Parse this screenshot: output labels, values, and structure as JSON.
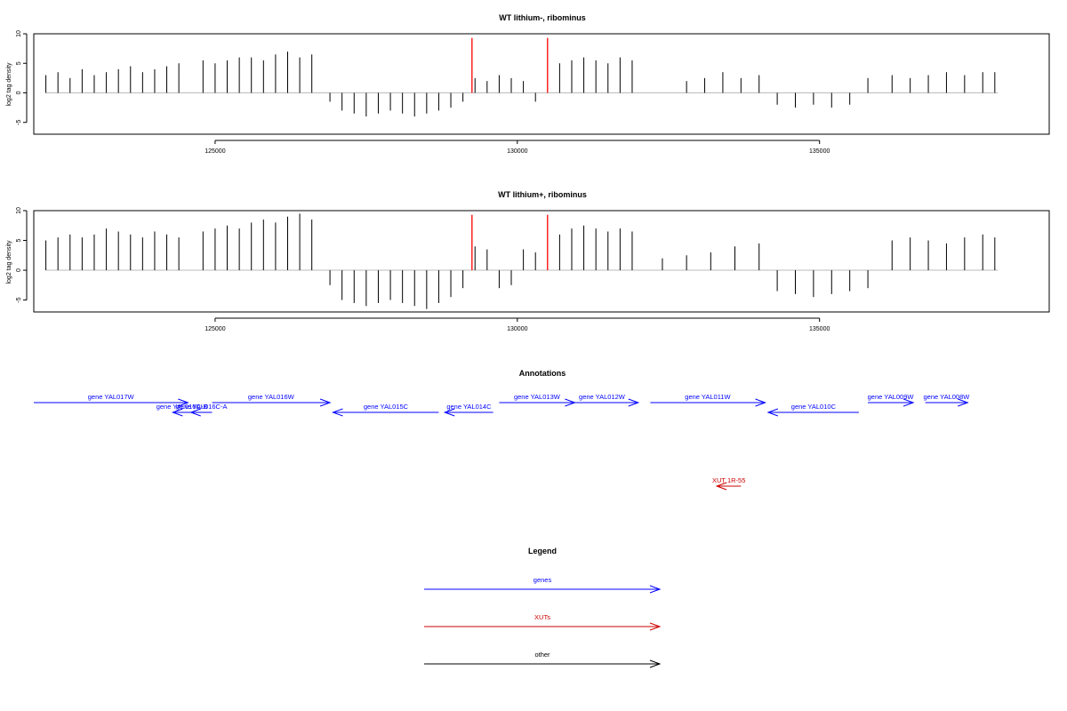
{
  "colors": {
    "density": "#000000",
    "marker": "#ff0000",
    "gene": "#0000ff",
    "xut": "#cc0000",
    "other": "#000000",
    "baseline": "#bbbbbb"
  },
  "chart_data": [
    {
      "type": "bar",
      "title": "WT lithium-, ribominus",
      "ylabel": "log2 tag density",
      "xlim": [
        122000,
        138800
      ],
      "ylim": [
        -7,
        10
      ],
      "xticks": [
        125000,
        130000,
        135000
      ],
      "yticks": [
        -5,
        0,
        5,
        10
      ],
      "markers_x": [
        129250,
        130500
      ],
      "series": {
        "x": [
          122200,
          122400,
          122600,
          122800,
          123000,
          123200,
          123400,
          123600,
          123800,
          124000,
          124200,
          124400,
          124800,
          125000,
          125200,
          125400,
          125600,
          125800,
          126000,
          126200,
          126400,
          126600,
          126900,
          127100,
          127300,
          127500,
          127700,
          127900,
          128100,
          128300,
          128500,
          128700,
          128900,
          129100,
          129300,
          129500,
          129700,
          129900,
          130100,
          130300,
          130700,
          130900,
          131100,
          131300,
          131500,
          131700,
          131900,
          132800,
          133100,
          133400,
          133700,
          134000,
          134300,
          134600,
          134900,
          135200,
          135500,
          135800,
          136200,
          136500,
          136800,
          137100,
          137400,
          137700,
          137900
        ],
        "y": [
          3,
          3.5,
          2.5,
          4,
          3,
          3.5,
          4,
          4.5,
          3.5,
          4,
          4.5,
          5,
          5.5,
          5,
          5.5,
          6,
          6,
          5.5,
          6.5,
          7,
          6,
          6.5,
          -1.5,
          -3,
          -3.5,
          -4,
          -3.5,
          -3,
          -3.5,
          -4,
          -3.5,
          -3,
          -2.5,
          -1.5,
          2.5,
          2,
          3,
          2.5,
          2,
          -1.5,
          5,
          5.5,
          6,
          5.5,
          5,
          6,
          5.5,
          2,
          2.5,
          3.5,
          2.5,
          3,
          -2,
          -2.5,
          -2,
          -2.5,
          -2,
          2.5,
          3,
          2.5,
          3,
          3.5,
          3,
          3.5,
          3.5
        ]
      }
    },
    {
      "type": "bar",
      "title": "WT lithium+, ribominus",
      "ylabel": "log2 tag density",
      "xlim": [
        122000,
        138800
      ],
      "ylim": [
        -7,
        10
      ],
      "xticks": [
        125000,
        130000,
        135000
      ],
      "yticks": [
        -5,
        0,
        5,
        10
      ],
      "markers_x": [
        129250,
        130500
      ],
      "series": {
        "x": [
          122200,
          122400,
          122600,
          122800,
          123000,
          123200,
          123400,
          123600,
          123800,
          124000,
          124200,
          124400,
          124800,
          125000,
          125200,
          125400,
          125600,
          125800,
          126000,
          126200,
          126400,
          126600,
          126900,
          127100,
          127300,
          127500,
          127700,
          127900,
          128100,
          128300,
          128500,
          128700,
          128900,
          129100,
          129300,
          129500,
          129700,
          129900,
          130100,
          130300,
          130700,
          130900,
          131100,
          131300,
          131500,
          131700,
          131900,
          132400,
          132800,
          133200,
          133600,
          134000,
          134300,
          134600,
          134900,
          135200,
          135500,
          135800,
          136200,
          136500,
          136800,
          137100,
          137400,
          137700,
          137900
        ],
        "y": [
          5,
          5.5,
          6,
          5.5,
          6,
          7,
          6.5,
          6,
          5.5,
          6.5,
          6,
          5.5,
          6.5,
          7,
          7.5,
          7,
          8,
          8.5,
          8,
          9,
          9.5,
          8.5,
          -2.5,
          -5,
          -5.5,
          -6,
          -5.5,
          -5,
          -5.5,
          -6,
          -6.5,
          -5.5,
          -4.5,
          -3,
          4,
          3.5,
          -3,
          -2.5,
          3.5,
          3,
          6,
          7,
          7.5,
          7,
          6.5,
          7,
          6.5,
          2,
          2.5,
          3,
          4,
          4.5,
          -3.5,
          -4,
          -4.5,
          -4,
          -3.5,
          -3,
          5,
          5.5,
          5,
          4.5,
          5.5,
          6,
          5.5
        ]
      }
    },
    {
      "type": "annotation-track",
      "title": "Annotations",
      "xlim": [
        122000,
        138800
      ],
      "features": [
        {
          "label": "gene YAL017W",
          "start": 122000,
          "end": 124550,
          "strand": "+",
          "kind": "gene",
          "row": 0
        },
        {
          "label": "gene YAL016C-B",
          "start": 124300,
          "end": 124600,
          "strand": "-",
          "kind": "gene",
          "row": 1
        },
        {
          "label": "gene YAL016C-A",
          "start": 124600,
          "end": 124950,
          "strand": "-",
          "kind": "gene",
          "row": 1
        },
        {
          "label": "gene YAL016W",
          "start": 124950,
          "end": 126900,
          "strand": "+",
          "kind": "gene",
          "row": 0
        },
        {
          "label": "gene YAL015C",
          "start": 126950,
          "end": 128700,
          "strand": "-",
          "kind": "gene",
          "row": 1
        },
        {
          "label": "gene YAL014C",
          "start": 128800,
          "end": 129600,
          "strand": "-",
          "kind": "gene",
          "row": 1
        },
        {
          "label": "gene YAL013W",
          "start": 129700,
          "end": 130950,
          "strand": "+",
          "kind": "gene",
          "row": 0
        },
        {
          "label": "gene YAL012W",
          "start": 130800,
          "end": 132000,
          "strand": "+",
          "kind": "gene",
          "row": 0
        },
        {
          "label": "gene YAL011W",
          "start": 132200,
          "end": 134100,
          "strand": "+",
          "kind": "gene",
          "row": 0
        },
        {
          "label": "gene YAL010C",
          "start": 134150,
          "end": 135650,
          "strand": "-",
          "kind": "gene",
          "row": 1
        },
        {
          "label": "gene YAL009W",
          "start": 135800,
          "end": 136550,
          "strand": "+",
          "kind": "gene",
          "row": 0
        },
        {
          "label": "gene YAL008W",
          "start": 136750,
          "end": 137450,
          "strand": "+",
          "kind": "gene",
          "row": 0
        },
        {
          "label": "XUT 1R-55",
          "start": 133300,
          "end": 133700,
          "strand": "-",
          "kind": "xut",
          "row": 2
        }
      ]
    },
    {
      "type": "legend",
      "title": "Legend",
      "entries": [
        {
          "label": "genes",
          "kind": "gene"
        },
        {
          "label": "XUTs",
          "kind": "xut"
        },
        {
          "label": "other",
          "kind": "other"
        }
      ]
    }
  ]
}
